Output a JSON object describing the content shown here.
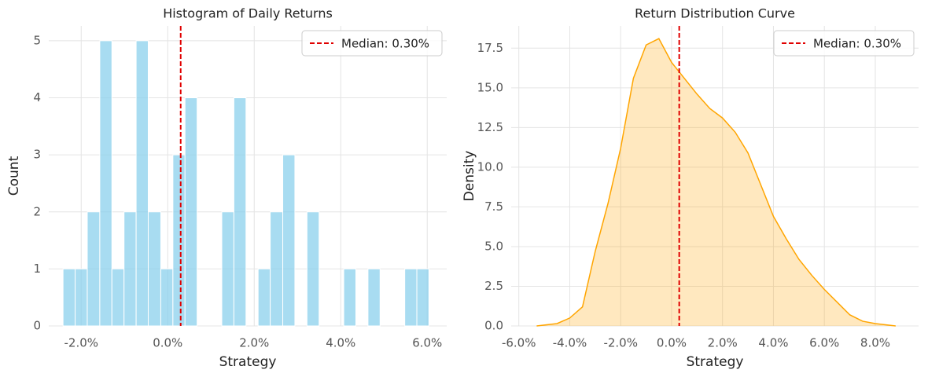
{
  "chart_data": [
    {
      "type": "histogram",
      "title": "Histogram of Daily Returns",
      "xlabel": "Strategy",
      "ylabel": "Count",
      "bins": [
        -2.42,
        -2.14,
        -1.86,
        -1.57,
        -1.29,
        -1.01,
        -0.73,
        -0.45,
        -0.16,
        0.12,
        0.4,
        0.68,
        0.96,
        1.25,
        1.53,
        1.81,
        2.09,
        2.37,
        2.66,
        2.94,
        3.22,
        3.5,
        3.78,
        4.07,
        4.35,
        4.63,
        4.91,
        5.19,
        5.48,
        5.76,
        6.04
      ],
      "values": [
        1,
        1,
        2,
        5,
        1,
        2,
        5,
        2,
        1,
        3,
        4,
        0,
        0,
        2,
        4,
        0,
        1,
        2,
        3,
        0,
        2,
        0,
        0,
        1,
        0,
        1,
        0,
        0,
        1,
        1
      ],
      "color": "#87ceeb",
      "xlim": [
        -2.75,
        6.45
      ],
      "ylim": [
        0,
        5.26
      ],
      "xticks": [
        {
          "value": -2,
          "label": "-2.0%"
        },
        {
          "value": 0,
          "label": "0.0%"
        },
        {
          "value": 2,
          "label": "2.0%"
        },
        {
          "value": 4,
          "label": "4.0%"
        },
        {
          "value": 6,
          "label": "6.0%"
        }
      ],
      "yticks": [
        0,
        1,
        2,
        3,
        4,
        5
      ],
      "grid": true,
      "legend": "upper right",
      "median": {
        "value": 0.3,
        "label": "Median: 0.30%",
        "color": "#e00000"
      }
    },
    {
      "type": "area",
      "title": "Return Distribution Curve",
      "xlabel": "Strategy",
      "ylabel": "Density",
      "x": [
        -5.3,
        -4.5,
        -4,
        -3.5,
        -3,
        -2.5,
        -2,
        -1.5,
        -1,
        -0.5,
        0,
        0.5,
        1,
        1.5,
        2,
        2.5,
        3,
        3.5,
        4,
        4.5,
        5,
        5.5,
        6,
        6.5,
        7,
        7.5,
        8,
        8.8
      ],
      "values": [
        0,
        0.15,
        0.5,
        1.2,
        4.7,
        7.7,
        11.2,
        15.6,
        17.7,
        18.1,
        16.6,
        15.6,
        14.6,
        13.7,
        13.1,
        12.2,
        10.9,
        8.9,
        6.9,
        5.5,
        4.2,
        3.2,
        2.3,
        1.5,
        0.7,
        0.3,
        0.15,
        0
      ],
      "color": "#ffa500",
      "xlim": [
        -6.3,
        9.7
      ],
      "ylim": [
        0,
        18.9
      ],
      "xticks": [
        {
          "value": -6,
          "label": "-6.0%"
        },
        {
          "value": -4,
          "label": "-4.0%"
        },
        {
          "value": -2,
          "label": "-2.0%"
        },
        {
          "value": 0,
          "label": "0.0%"
        },
        {
          "value": 2,
          "label": "2.0%"
        },
        {
          "value": 4,
          "label": "4.0%"
        },
        {
          "value": 6,
          "label": "6.0%"
        },
        {
          "value": 8,
          "label": "8.0%"
        }
      ],
      "yticks": [
        {
          "value": 0,
          "label": "0.0"
        },
        2.5,
        {
          "value": 5,
          "label": "5.0"
        },
        7.5,
        {
          "value": 10,
          "label": "10.0"
        },
        12.5,
        {
          "value": 15,
          "label": "15.0"
        },
        17.5
      ],
      "grid": true,
      "legend": "upper right",
      "median": {
        "value": 0.3,
        "label": "Median: 0.30%",
        "color": "#e00000"
      }
    }
  ]
}
